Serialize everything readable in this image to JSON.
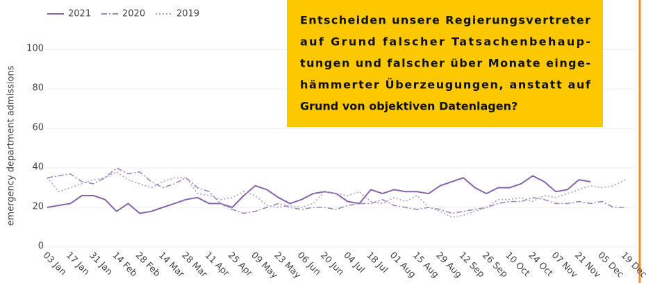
{
  "chart_data": {
    "type": "line",
    "y_label": "emergency department admissions",
    "ylim": [
      0,
      105
    ],
    "yticks": [
      0,
      20,
      40,
      60,
      80,
      100
    ],
    "grid": true,
    "categories": [
      "03 Jan",
      null,
      "17 Jan",
      null,
      "31 Jan",
      null,
      "14 Feb",
      null,
      "28 Feb",
      null,
      "14 Mar",
      null,
      "28 Mar",
      null,
      "11 Apr",
      null,
      "25 Apr",
      null,
      "09 May",
      null,
      "23 May",
      null,
      "06 Jun",
      null,
      "20 Jun",
      null,
      "04 Jul",
      null,
      "18 Jul",
      null,
      "01 Aug",
      null,
      "15 Aug",
      null,
      "29 Aug",
      null,
      "12 Sep",
      null,
      "26 Sep",
      null,
      "10 Oct",
      null,
      "24 Oct",
      null,
      "07 Nov",
      null,
      "21 Nov",
      null,
      "05 Dec",
      null,
      "19 Dec"
    ],
    "series": [
      {
        "name": "2021",
        "color": "#8466a8",
        "dash": "none",
        "values": [
          20,
          21,
          22,
          26,
          26,
          24,
          18,
          22,
          17,
          18,
          20,
          22,
          24,
          25,
          22,
          22,
          20,
          26,
          31,
          29,
          25,
          22,
          24,
          27,
          28,
          27,
          23,
          22,
          29,
          27,
          29,
          28,
          28,
          27,
          31,
          33,
          35,
          30,
          27,
          30,
          30,
          32,
          36,
          33,
          28,
          29,
          34,
          33,
          null,
          null,
          null
        ]
      },
      {
        "name": "2020",
        "color": "#9a88b8",
        "dash": "8 3 2 3",
        "values": [
          35,
          36,
          37,
          33,
          32,
          35,
          40,
          37,
          38,
          33,
          30,
          32,
          35,
          30,
          28,
          22,
          19,
          17,
          18,
          20,
          22,
          20,
          19,
          20,
          20,
          19,
          21,
          22,
          22,
          24,
          21,
          20,
          19,
          20,
          19,
          17,
          18,
          19,
          20,
          22,
          23,
          23,
          25,
          24,
          22,
          22,
          23,
          22,
          23,
          20,
          20
        ]
      },
      {
        "name": "2019",
        "color": "#ad9fca",
        "dash": "2 3",
        "values": [
          35,
          28,
          30,
          32,
          34,
          35,
          38,
          34,
          32,
          30,
          33,
          35,
          35,
          27,
          26,
          24,
          25,
          28,
          26,
          21,
          20,
          21,
          20,
          22,
          28,
          27,
          26,
          28,
          23,
          22,
          25,
          23,
          26,
          20,
          18,
          15,
          16,
          18,
          20,
          24,
          24,
          25,
          23,
          26,
          25,
          27,
          29,
          31,
          30,
          31,
          34
        ]
      }
    ],
    "annotation": [
      "Entscheiden unsere Regierungsvertreter",
      "auf Grund falscher Tatsachenbehaup-",
      "tungen und falscher über Monate einge-",
      "hämmerter Überzeugungen, anstatt auf",
      "Grund von objektiven Datenlagen?"
    ]
  }
}
